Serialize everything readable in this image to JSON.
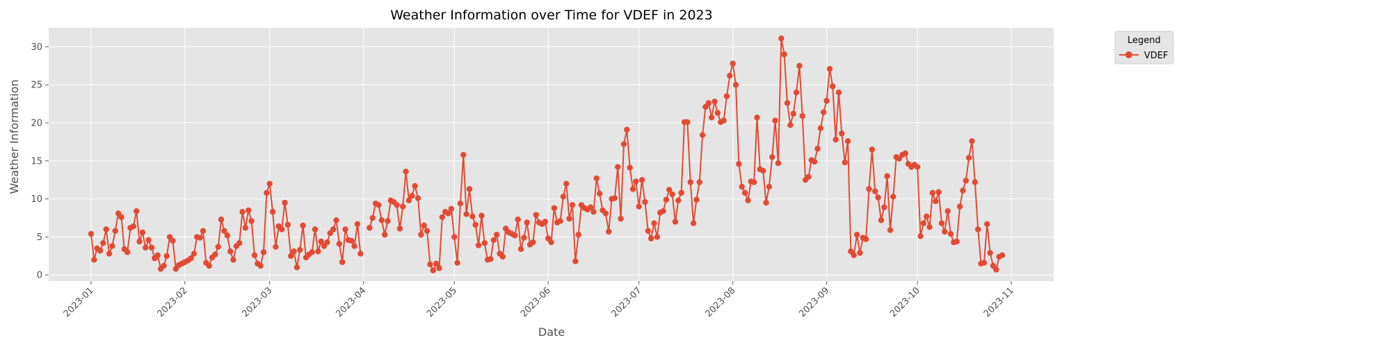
{
  "chart_data": {
    "type": "line",
    "title": "Weather Information over Time for VDEF in 2023",
    "xlabel": "Date",
    "ylabel": "Weather Information",
    "x_start": "2023-01-01",
    "x_ticks": [
      "2023-01",
      "2023-02",
      "2023-03",
      "2023-04",
      "2023-05",
      "2023-06",
      "2023-07",
      "2023-08",
      "2023-09",
      "2023-10",
      "2023-11"
    ],
    "y_ticks": [
      0,
      5,
      10,
      15,
      20,
      25,
      30
    ],
    "ylim": [
      -0.8,
      32.5
    ],
    "xlim_days": [
      -14,
      318
    ],
    "grid": true,
    "legend": {
      "title": "Legend",
      "placement": "outside-top-right",
      "entries": [
        "VDEF"
      ]
    },
    "colors": {
      "series": "#E24A33",
      "plot_bg": "#E5E5E5",
      "grid": "#FFFFFF"
    },
    "series": [
      {
        "name": "VDEF",
        "segments": [
          {
            "start_day": 0,
            "values": [
              5.4,
              2.0,
              3.5,
              3.2,
              4.2,
              6.0,
              2.8,
              3.8,
              5.8,
              8.1,
              7.6,
              3.4,
              3.0,
              6.2,
              6.4,
              8.4,
              4.4,
              5.6,
              3.6,
              4.6,
              3.6,
              2.2,
              2.6,
              0.8,
              1.2,
              2.5,
              5.0,
              4.5,
              0.8,
              1.3,
              1.5,
              1.7,
              1.9,
              2.2,
              2.8,
              5.0,
              4.9,
              5.8,
              1.6,
              1.2,
              2.3,
              2.7,
              3.7,
              7.3,
              5.8,
              5.2,
              3.1,
              2.0,
              3.8,
              4.2,
              8.3,
              6.2,
              8.5,
              7.1,
              2.6,
              1.5,
              1.2,
              3.0,
              10.8,
              12.0,
              8.3,
              3.7,
              6.4,
              6.0,
              9.5,
              6.6,
              2.5,
              3.1,
              1.0,
              3.3,
              6.5,
              2.3,
              2.7,
              3.0,
              6.0,
              3.1,
              4.4,
              3.8,
              4.3,
              5.5,
              6.0,
              7.2,
              4.1,
              1.7,
              6.0,
              4.6,
              4.5,
              3.8,
              6.7,
              2.8
            ]
          },
          {
            "start_day": 92,
            "values": [
              6.2,
              7.5,
              9.4,
              9.2,
              7.2,
              5.3,
              7.1,
              9.8,
              9.6,
              9.2,
              6.1,
              9.0,
              13.6,
              9.8,
              10.4,
              11.7,
              10.1,
              5.3,
              6.5,
              5.8,
              1.4,
              0.6,
              1.5,
              0.9,
              7.6,
              8.3,
              8.1,
              8.7,
              5.0,
              1.6,
              9.4,
              15.8,
              8.0,
              11.3,
              7.7,
              6.6,
              3.9,
              7.8,
              4.2,
              2.0,
              2.1,
              4.6,
              5.3,
              2.8,
              2.4,
              6.1,
              5.6,
              5.4,
              5.2,
              7.3,
              3.4,
              4.9,
              6.9,
              4.0,
              4.3,
              7.9,
              6.9,
              6.7,
              7.0,
              4.8,
              4.3,
              8.8,
              6.9,
              7.1,
              10.3,
              12.0,
              7.4,
              9.2,
              1.8,
              5.3,
              9.2,
              8.8,
              8.6,
              8.9,
              8.3,
              12.7,
              10.7,
              8.5,
              8.1,
              5.7,
              10.0,
              10.1,
              14.2,
              7.4,
              17.2,
              19.1,
              14.1,
              11.3,
              12.3,
              9.0,
              12.5,
              9.6,
              5.8,
              4.8,
              6.8,
              5.0,
              8.2,
              8.4,
              9.9,
              11.2,
              10.6,
              7.0,
              9.8,
              10.8,
              20.1,
              20.1,
              12.2,
              6.8,
              9.9,
              12.2,
              18.4,
              22.1,
              22.6,
              20.7,
              22.8,
              21.3,
              20.1,
              20.3,
              23.5,
              26.2,
              27.8,
              25.0,
              14.6,
              11.6,
              10.8,
              9.8,
              12.3,
              12.2,
              20.7,
              13.9,
              13.7,
              9.5,
              11.6,
              15.5,
              20.3,
              14.7,
              31.1,
              29.0,
              22.6,
              19.7,
              21.2,
              24.0,
              27.5,
              20.9,
              12.5,
              12.9,
              15.1,
              14.9,
              16.6,
              19.3,
              21.4,
              22.9,
              27.1,
              24.8,
              17.8,
              24.0,
              18.6,
              14.8,
              17.6,
              3.1,
              2.6,
              5.3,
              2.9,
              4.9,
              4.7,
              11.3,
              16.5,
              11.0,
              10.2,
              7.2,
              8.9,
              13.0,
              5.9,
              10.3,
              15.5,
              15.3,
              15.8,
              16.0,
              14.6,
              14.2,
              14.5,
              14.2,
              5.1,
              6.8,
              7.7,
              6.3,
              10.8,
              9.7,
              10.9,
              6.8,
              5.7,
              8.4,
              5.4,
              4.3,
              4.4,
              9.0,
              11.1,
              12.4,
              15.4,
              17.6,
              12.2,
              6.0,
              1.5,
              1.6,
              6.7,
              2.9,
              1.2,
              0.7,
              2.4,
              2.6
            ]
          }
        ]
      }
    ]
  }
}
